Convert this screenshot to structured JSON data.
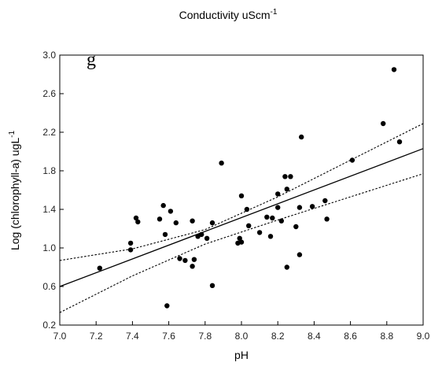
{
  "chart_data": {
    "type": "scatter",
    "title": "Conductivity uScm",
    "title_superscript": "-1",
    "panel_label": "g",
    "xlabel": "pH",
    "ylabel": "Log (chlorophyll-a) ugL",
    "ylabel_superscript": "-1",
    "xlim": [
      7.0,
      9.0
    ],
    "ylim": [
      0.2,
      3.0
    ],
    "x_ticks": [
      "7.0",
      "7.2",
      "7.4",
      "7.6",
      "7.8",
      "8.0",
      "8.2",
      "8.4",
      "8.6",
      "8.8",
      "9.0"
    ],
    "y_ticks": [
      "0.2",
      "0.6",
      "1.0",
      "1.4",
      "1.8",
      "2.2",
      "2.6",
      "3.0"
    ],
    "grid": false,
    "series": [
      {
        "points": [
          [
            7.22,
            0.79
          ],
          [
            7.39,
            0.98
          ],
          [
            7.39,
            1.05
          ],
          [
            7.42,
            1.31
          ],
          [
            7.43,
            1.27
          ],
          [
            7.55,
            1.3
          ],
          [
            7.57,
            1.44
          ],
          [
            7.58,
            1.14
          ],
          [
            7.59,
            0.4
          ],
          [
            7.61,
            1.38
          ],
          [
            7.64,
            1.26
          ],
          [
            7.66,
            0.89
          ],
          [
            7.69,
            0.87
          ],
          [
            7.73,
            1.28
          ],
          [
            7.73,
            0.81
          ],
          [
            7.74,
            0.88
          ],
          [
            7.76,
            1.12
          ],
          [
            7.78,
            1.14
          ],
          [
            7.81,
            1.1
          ],
          [
            7.84,
            1.26
          ],
          [
            7.84,
            0.61
          ],
          [
            7.89,
            1.88
          ],
          [
            7.98,
            1.05
          ],
          [
            7.99,
            1.1
          ],
          [
            8.0,
            1.06
          ],
          [
            8.0,
            1.54
          ],
          [
            8.03,
            1.4
          ],
          [
            8.04,
            1.23
          ],
          [
            8.1,
            1.16
          ],
          [
            8.14,
            1.32
          ],
          [
            8.16,
            1.12
          ],
          [
            8.17,
            1.31
          ],
          [
            8.2,
            1.42
          ],
          [
            8.2,
            1.56
          ],
          [
            8.22,
            1.28
          ],
          [
            8.24,
            1.74
          ],
          [
            8.25,
            1.61
          ],
          [
            8.25,
            0.8
          ],
          [
            8.27,
            1.74
          ],
          [
            8.3,
            1.22
          ],
          [
            8.32,
            0.93
          ],
          [
            8.32,
            1.42
          ],
          [
            8.33,
            2.15
          ],
          [
            8.39,
            1.43
          ],
          [
            8.46,
            1.49
          ],
          [
            8.47,
            1.3
          ],
          [
            8.61,
            1.91
          ],
          [
            8.78,
            2.29
          ],
          [
            8.84,
            2.85
          ],
          [
            8.87,
            2.1
          ]
        ]
      }
    ],
    "fit_line": {
      "x": [
        7.0,
        9.0
      ],
      "y": [
        0.6,
        2.03
      ]
    },
    "confidence_band": {
      "upper": {
        "x": [
          7.0,
          7.4,
          7.8,
          8.2,
          8.6,
          9.0
        ],
        "y": [
          0.87,
          0.99,
          1.19,
          1.53,
          1.91,
          2.29
        ]
      },
      "lower": {
        "x": [
          7.0,
          7.4,
          7.8,
          8.2,
          8.6,
          9.0
        ],
        "y": [
          0.33,
          0.71,
          1.04,
          1.29,
          1.53,
          1.77
        ]
      }
    }
  }
}
